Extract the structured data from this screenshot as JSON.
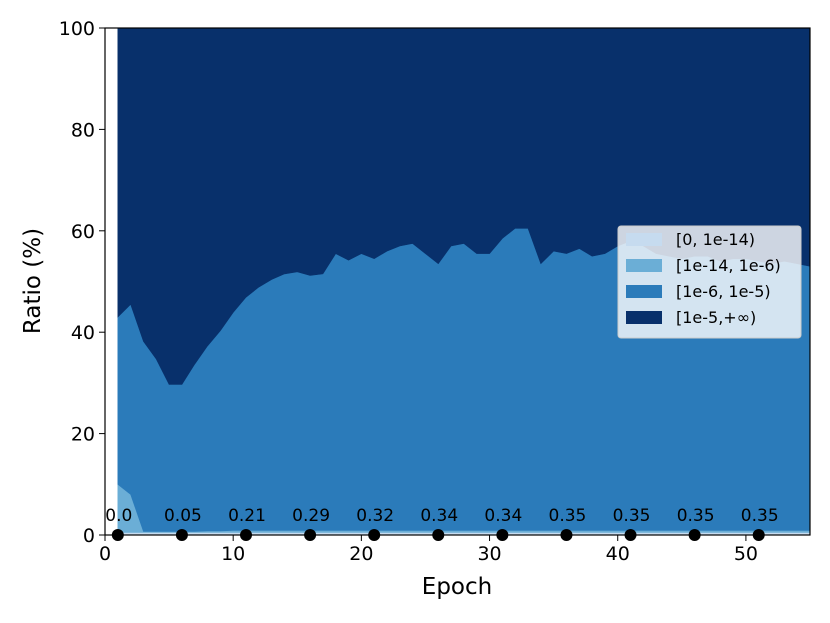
{
  "chart_data": {
    "type": "area",
    "xlabel": "Epoch",
    "ylabel": "Ratio (%)",
    "xlim": [
      0,
      55
    ],
    "ylim": [
      0,
      100
    ],
    "x_ticks": [
      0,
      10,
      20,
      30,
      40,
      50
    ],
    "y_ticks": [
      0,
      20,
      40,
      60,
      80,
      100
    ],
    "grid": false,
    "stacked": true,
    "legend_position": "center-right",
    "x": [
      1,
      2,
      3,
      4,
      5,
      6,
      7,
      8,
      9,
      10,
      11,
      12,
      13,
      14,
      15,
      16,
      17,
      18,
      19,
      20,
      21,
      22,
      23,
      24,
      25,
      26,
      27,
      28,
      29,
      30,
      31,
      32,
      33,
      34,
      35,
      36,
      37,
      38,
      39,
      40,
      41,
      42,
      43,
      44,
      45,
      46,
      47,
      48,
      49,
      50,
      51,
      52,
      53,
      54,
      55
    ],
    "series": [
      {
        "name": "[0, 1e-14)",
        "color": "#c6dbef",
        "values": [
          0.5,
          0.5,
          0.5,
          0.5,
          0.5,
          0.5,
          0.5,
          0.5,
          0.5,
          0.5,
          0.5,
          0.5,
          0.5,
          0.5,
          0.5,
          0.5,
          0.5,
          0.5,
          0.5,
          0.5,
          0.5,
          0.5,
          0.5,
          0.5,
          0.5,
          0.5,
          0.5,
          0.5,
          0.5,
          0.5,
          0.5,
          0.5,
          0.5,
          0.5,
          0.5,
          0.5,
          0.5,
          0.5,
          0.5,
          0.5,
          0.5,
          0.5,
          0.5,
          0.5,
          0.5,
          0.5,
          0.5,
          0.5,
          0.5,
          0.5,
          0.5,
          0.5,
          0.5,
          0.5,
          0.5
        ]
      },
      {
        "name": "[1e-14, 1e-6)",
        "color": "#6baed6",
        "values": [
          9.5,
          7.5,
          0.2,
          0.2,
          0.2,
          0.2,
          0.2,
          0.3,
          0.3,
          0.4,
          0.4,
          0.4,
          0.4,
          0.4,
          0.4,
          0.4,
          0.4,
          0.4,
          0.4,
          0.4,
          0.4,
          0.4,
          0.4,
          0.4,
          0.4,
          0.4,
          0.4,
          0.4,
          0.4,
          0.4,
          0.4,
          0.4,
          0.4,
          0.4,
          0.4,
          0.4,
          0.4,
          0.4,
          0.4,
          0.4,
          0.4,
          0.4,
          0.4,
          0.4,
          0.4,
          0.4,
          0.4,
          0.4,
          0.4,
          0.4,
          0.4,
          0.4,
          0.4,
          0.4,
          0.4
        ]
      },
      {
        "name": "[1e-6, 1e-5)",
        "color": "#2b7bba",
        "values": [
          33,
          37.5,
          37.5,
          34,
          29,
          29,
          33,
          36.5,
          39.5,
          43,
          46,
          48,
          49.5,
          50.6,
          51,
          50.3,
          50.6,
          54.6,
          53.3,
          54.6,
          53.6,
          55.1,
          56.1,
          56.6,
          54.6,
          52.6,
          56.1,
          56.6,
          54.6,
          54.6,
          57.6,
          59.6,
          59.6,
          52.6,
          55.1,
          54.6,
          55.6,
          54.1,
          54.6,
          56.1,
          57.1,
          56.1,
          54.6,
          54.1,
          53.6,
          54.1,
          54.1,
          53.1,
          53.6,
          53.6,
          53.1,
          52.6,
          53.1,
          52.6,
          52.1
        ]
      },
      {
        "name": "[1e-5,+∞)",
        "color": "#08306b",
        "values": [
          57,
          54.5,
          61.8,
          65.3,
          70.3,
          70.3,
          66.3,
          62.7,
          59.7,
          56.1,
          53.1,
          51.1,
          49.6,
          48.5,
          48.1,
          48.8,
          48.5,
          44.5,
          45.8,
          44.5,
          45.5,
          44,
          43,
          42.5,
          44.5,
          46.5,
          43,
          42.5,
          44.5,
          44.5,
          41.5,
          39.5,
          39.5,
          46.5,
          44,
          44.5,
          43.5,
          45,
          44.5,
          43,
          42,
          43,
          44.5,
          45,
          45.5,
          45,
          45,
          46,
          45.5,
          45.5,
          46,
          46.5,
          46,
          46.5,
          47
        ]
      }
    ],
    "annotations": {
      "x": [
        1,
        6,
        11,
        16,
        21,
        26,
        31,
        36,
        41,
        46,
        51
      ],
      "labels": [
        "0.0",
        "0.05",
        "0.21",
        "0.29",
        "0.32",
        "0.34",
        "0.34",
        "0.35",
        "0.35",
        "0.35",
        "0.35"
      ]
    }
  }
}
